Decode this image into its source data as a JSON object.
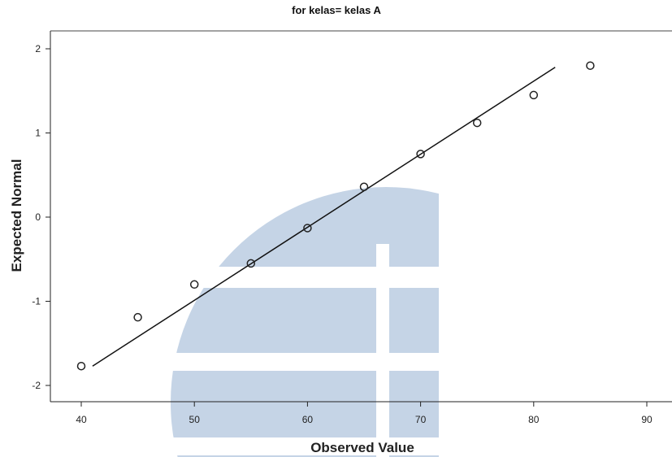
{
  "chart_data": {
    "type": "scatter",
    "title": "for kelas= kelas A",
    "xlabel": "Observed Value",
    "ylabel": "Expected Normal",
    "xlim": [
      39,
      92
    ],
    "ylim": [
      -2.25,
      2.25
    ],
    "xticks": [
      40,
      50,
      60,
      70,
      80,
      90
    ],
    "yticks": [
      2,
      1,
      0,
      -1,
      -2
    ],
    "points": [
      {
        "x": 40,
        "y": -1.77
      },
      {
        "x": 45,
        "y": -1.19
      },
      {
        "x": 50,
        "y": -0.8
      },
      {
        "x": 55,
        "y": -0.55
      },
      {
        "x": 60,
        "y": -0.13
      },
      {
        "x": 65,
        "y": 0.36
      },
      {
        "x": 70,
        "y": 0.75
      },
      {
        "x": 75,
        "y": 1.12
      },
      {
        "x": 80,
        "y": 1.45
      },
      {
        "x": 85,
        "y": 1.8
      }
    ],
    "fit_line": {
      "x": [
        41,
        81.9
      ],
      "y": [
        -1.77,
        1.78
      ]
    },
    "grid": false,
    "colors": {
      "marker": "#222222",
      "line": "#111111",
      "watermark": "#c5d4e6"
    }
  }
}
